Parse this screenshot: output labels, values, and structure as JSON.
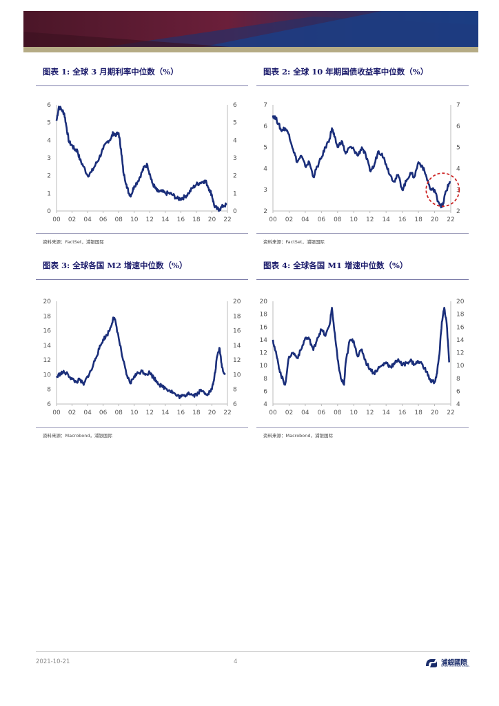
{
  "header": {},
  "figures": [
    {
      "label": "图表 1:",
      "title": "全球 3 月期利率中位数（%）",
      "source": "资料来源：FactSet，浦银国际"
    },
    {
      "label": "图表 2:",
      "title": "全球 10 年期国债收益率中位数（%）",
      "source": "资料来源：FactSet，浦银国际"
    },
    {
      "label": "图表 3:",
      "title": "全球各国 M2 增速中位数（%）",
      "source": "资料来源：Macrobond，浦银国际"
    },
    {
      "label": "图表 4:",
      "title": "全球各国 M1 增速中位数（%）",
      "source": "资料来源：Macrobond，浦银国际"
    }
  ],
  "chart_data": [
    {
      "type": "line",
      "xticks": [
        "00",
        "02",
        "04",
        "06",
        "08",
        "10",
        "12",
        "14",
        "16",
        "18",
        "20",
        "22"
      ],
      "xlim": [
        2000,
        2022
      ],
      "ylim": [
        0,
        6
      ],
      "yticks": [
        0,
        1,
        2,
        3,
        4,
        5,
        6
      ],
      "line_color": "#1a2e7a",
      "series": [
        {
          "x": [
            2000,
            2000.3,
            2000.7,
            2001,
            2001.3,
            2001.6,
            2002,
            2002.3,
            2002.7,
            2003,
            2003.5,
            2004,
            2004.5,
            2005,
            2005.5,
            2006,
            2006.5,
            2007,
            2007.3,
            2007.7,
            2008,
            2008.3,
            2008.6,
            2009,
            2009.3,
            2009.6,
            2010,
            2010.5,
            2011,
            2011.3,
            2011.7,
            2012,
            2012.3,
            2012.7,
            2013,
            2013.5,
            2014,
            2014.5,
            2015,
            2015.5,
            2016,
            2016.5,
            2017,
            2017.5,
            2018,
            2018.5,
            2019,
            2019.3,
            2019.7,
            2020,
            2020.3,
            2020.7,
            2021,
            2021.5,
            2021.9
          ],
          "y": [
            5.1,
            5.9,
            5.7,
            5.5,
            4.7,
            3.9,
            3.7,
            3.5,
            3.4,
            2.9,
            2.5,
            2.0,
            2.2,
            2.6,
            3.0,
            3.5,
            3.9,
            4.1,
            4.4,
            4.3,
            4.4,
            3.5,
            2.2,
            1.5,
            1.0,
            0.9,
            1.4,
            1.7,
            2.2,
            2.5,
            2.6,
            2.1,
            1.6,
            1.3,
            1.1,
            1.1,
            1.0,
            1.0,
            0.9,
            0.7,
            0.7,
            0.8,
            1.0,
            1.3,
            1.5,
            1.6,
            1.7,
            1.6,
            1.2,
            0.9,
            0.3,
            0.1,
            0.1,
            0.3,
            0.35
          ]
        }
      ]
    },
    {
      "type": "line",
      "xticks": [
        "00",
        "02",
        "04",
        "06",
        "08",
        "10",
        "12",
        "14",
        "16",
        "18",
        "20",
        "22"
      ],
      "xlim": [
        2000,
        2022
      ],
      "ylim": [
        2,
        7
      ],
      "yticks": [
        2,
        3,
        4,
        5,
        6,
        7
      ],
      "line_color": "#1a2e7a",
      "annotation": {
        "type": "circle",
        "style": "dashed",
        "color": "#cc2222",
        "x": 2021,
        "y": 3.0
      },
      "series": [
        {
          "x": [
            2000,
            2000.3,
            2000.7,
            2001,
            2001.5,
            2002,
            2002.5,
            2003,
            2003.5,
            2004,
            2004.5,
            2005,
            2005.5,
            2006,
            2006.5,
            2007,
            2007.3,
            2007.6,
            2008,
            2008.5,
            2009,
            2009.5,
            2010,
            2010.5,
            2011,
            2011.5,
            2012,
            2012.5,
            2013,
            2013.5,
            2014,
            2014.5,
            2015,
            2015.5,
            2016,
            2016.5,
            2017,
            2017.5,
            2018,
            2018.5,
            2019,
            2019.5,
            2020,
            2020.3,
            2020.7,
            2021,
            2021.3,
            2021.6,
            2021.9
          ],
          "y": [
            6.5,
            6.4,
            6.1,
            5.8,
            5.9,
            5.6,
            4.9,
            4.3,
            4.6,
            4.1,
            4.3,
            3.6,
            4.1,
            4.5,
            5.0,
            5.4,
            5.9,
            5.5,
            5.0,
            5.3,
            4.7,
            5.0,
            4.9,
            4.6,
            5.0,
            4.6,
            3.9,
            4.1,
            4.8,
            4.7,
            4.2,
            3.7,
            3.4,
            3.7,
            3.0,
            3.4,
            3.8,
            3.6,
            4.3,
            4.1,
            3.6,
            3.0,
            3.0,
            2.6,
            2.3,
            2.2,
            2.8,
            3.1,
            3.4
          ]
        }
      ]
    },
    {
      "type": "line",
      "xticks": [
        "00",
        "02",
        "04",
        "06",
        "08",
        "10",
        "12",
        "14",
        "16",
        "18",
        "20",
        "22"
      ],
      "xlim": [
        2000,
        2022
      ],
      "ylim": [
        6,
        20
      ],
      "yticks": [
        6,
        8,
        10,
        12,
        14,
        16,
        18,
        20
      ],
      "line_color": "#1a2e7a",
      "series": [
        {
          "x": [
            2000,
            2000.5,
            2001,
            2001.5,
            2002,
            2002.5,
            2003,
            2003.5,
            2004,
            2004.5,
            2005,
            2005.5,
            2006,
            2006.5,
            2007,
            2007.3,
            2007.6,
            2008,
            2008.5,
            2009,
            2009.5,
            2010,
            2010.5,
            2011,
            2011.5,
            2012,
            2012.5,
            2013,
            2013.5,
            2014,
            2014.5,
            2015,
            2015.5,
            2016,
            2016.5,
            2017,
            2017.5,
            2018,
            2018.5,
            2019,
            2019.5,
            2020,
            2020.3,
            2020.7,
            2021,
            2021.3,
            2021.7
          ],
          "y": [
            9.6,
            10.2,
            10.3,
            10.0,
            9.4,
            9.0,
            9.3,
            8.6,
            9.8,
            10.6,
            12.2,
            13.5,
            14.8,
            15.4,
            16.5,
            17.8,
            17.2,
            15.0,
            12.3,
            10.0,
            8.8,
            9.8,
            10.2,
            10.5,
            10.1,
            10.3,
            9.6,
            9.0,
            8.4,
            8.2,
            7.9,
            7.6,
            7.1,
            7.0,
            7.1,
            7.6,
            7.2,
            7.3,
            7.8,
            7.6,
            7.4,
            8.0,
            9.5,
            12.6,
            13.6,
            11.0,
            10.0
          ]
        }
      ]
    },
    {
      "type": "line",
      "xticks": [
        "00",
        "02",
        "04",
        "06",
        "08",
        "10",
        "12",
        "14",
        "16",
        "18",
        "20",
        "22"
      ],
      "xlim": [
        2000,
        2022
      ],
      "ylim": [
        4,
        20
      ],
      "yticks": [
        4,
        6,
        8,
        10,
        12,
        14,
        16,
        18,
        20
      ],
      "line_color": "#1a2e7a",
      "series": [
        {
          "x": [
            2000,
            2000.3,
            2000.7,
            2001,
            2001.5,
            2002,
            2002.5,
            2003,
            2003.5,
            2004,
            2004.5,
            2005,
            2005.5,
            2006,
            2006.5,
            2007,
            2007.3,
            2007.6,
            2008,
            2008.4,
            2008.8,
            2009,
            2009.5,
            2010,
            2010.5,
            2011,
            2011.5,
            2012,
            2012.5,
            2013,
            2013.5,
            2014,
            2014.5,
            2015,
            2015.5,
            2016,
            2016.5,
            2017,
            2017.5,
            2018,
            2018.5,
            2019,
            2019.5,
            2020,
            2020.3,
            2020.6,
            2020.9,
            2021.2,
            2021.5,
            2021.8
          ],
          "y": [
            14.0,
            12.3,
            10.0,
            8.5,
            7.0,
            11.4,
            12.0,
            11.2,
            12.5,
            14.3,
            14.1,
            12.4,
            14.3,
            15.6,
            14.6,
            16.3,
            19.0,
            15.4,
            11.0,
            8.0,
            7.0,
            10.4,
            13.9,
            13.8,
            11.4,
            12.5,
            10.5,
            9.5,
            8.8,
            9.5,
            10.0,
            10.5,
            9.8,
            10.2,
            11.0,
            10.0,
            10.4,
            10.8,
            10.2,
            10.6,
            10.2,
            9.0,
            7.6,
            7.4,
            8.8,
            11.8,
            16.8,
            19.0,
            16.5,
            10.5
          ]
        }
      ]
    }
  ],
  "footer": {
    "date": "2021-10-21",
    "page": "4",
    "logo_text": "浦銀國際",
    "logo_sub": "SPDB INTERNATIONAL"
  }
}
